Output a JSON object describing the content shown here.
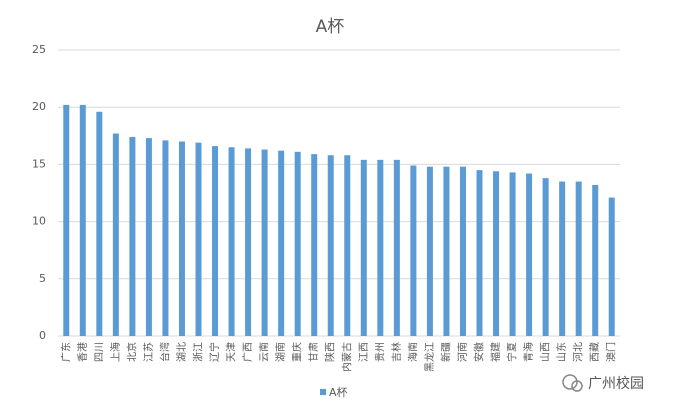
{
  "chart_data": {
    "type": "bar",
    "title": "A杯",
    "categories": [
      "广东",
      "香港",
      "四川",
      "上海",
      "北京",
      "江苏",
      "台湾",
      "湖北",
      "浙江",
      "辽宁",
      "天津",
      "广西",
      "云南",
      "湖南",
      "重庆",
      "甘肃",
      "陕西",
      "内蒙古",
      "江西",
      "贵州",
      "吉林",
      "海南",
      "黑龙江",
      "新疆",
      "河南",
      "安徽",
      "福建",
      "宁夏",
      "青海",
      "山西",
      "山东",
      "河北",
      "西藏",
      "澳门"
    ],
    "series": [
      {
        "name": "A杯",
        "color": "#5b9bd5",
        "values": [
          20.2,
          20.2,
          19.6,
          17.7,
          17.4,
          17.3,
          17.1,
          17.0,
          16.9,
          16.6,
          16.5,
          16.4,
          16.3,
          16.2,
          16.1,
          15.9,
          15.8,
          15.8,
          15.4,
          15.4,
          15.4,
          14.9,
          14.8,
          14.8,
          14.8,
          14.5,
          14.4,
          14.3,
          14.2,
          13.8,
          13.5,
          13.5,
          13.2,
          12.1
        ]
      }
    ],
    "ylim": [
      0,
      25
    ],
    "yticks": [
      0,
      5,
      10,
      15,
      20,
      25
    ],
    "grid": true,
    "legend": "bottom"
  },
  "watermark": "广州校园"
}
